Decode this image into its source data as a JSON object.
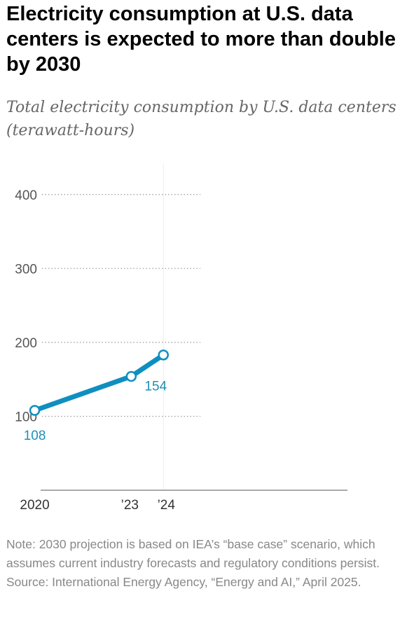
{
  "title": "Electricity consumption at U.S. data centers is expected to more than double by 2030",
  "subtitle": "Total electricity consumption by U.S. data centers (terawatt-hours)",
  "note": "Note: 2030 projection is based on IEA’s “base case” scenario, which assumes current industry forecasts and regulatory conditions persist.",
  "source": "Source: International Energy Agency, “Energy and AI,” April 2025.",
  "colors": {
    "line": "#0f8fbf",
    "label": "#1f8fb8",
    "grid": "#999999",
    "axis": "#777777"
  },
  "chart_data": {
    "type": "line",
    "title": "",
    "xlabel": "",
    "ylabel": "",
    "ylim": [
      0,
      450
    ],
    "xlim": [
      2019.4,
      2030.2
    ],
    "yticks": [
      {
        "value": 100,
        "label": "100"
      },
      {
        "value": 200,
        "label": "200"
      },
      {
        "value": 300,
        "label": "300"
      },
      {
        "value": 400,
        "label": "400"
      }
    ],
    "xticks": [
      {
        "value": 2020,
        "label": "2020"
      },
      {
        "value": 2023,
        "label": "’23"
      },
      {
        "value": 2024,
        "label": "’24"
      }
    ],
    "series": [
      {
        "points": [
          {
            "x": 2020,
            "y": 108
          },
          {
            "x": 2023,
            "y": 154
          },
          {
            "x": 2024,
            "y": 183
          }
        ]
      }
    ],
    "data_labels": [
      {
        "x": 2020,
        "y": 108,
        "text": "108"
      },
      {
        "x": 2023,
        "y": 154,
        "text": "154"
      }
    ]
  }
}
